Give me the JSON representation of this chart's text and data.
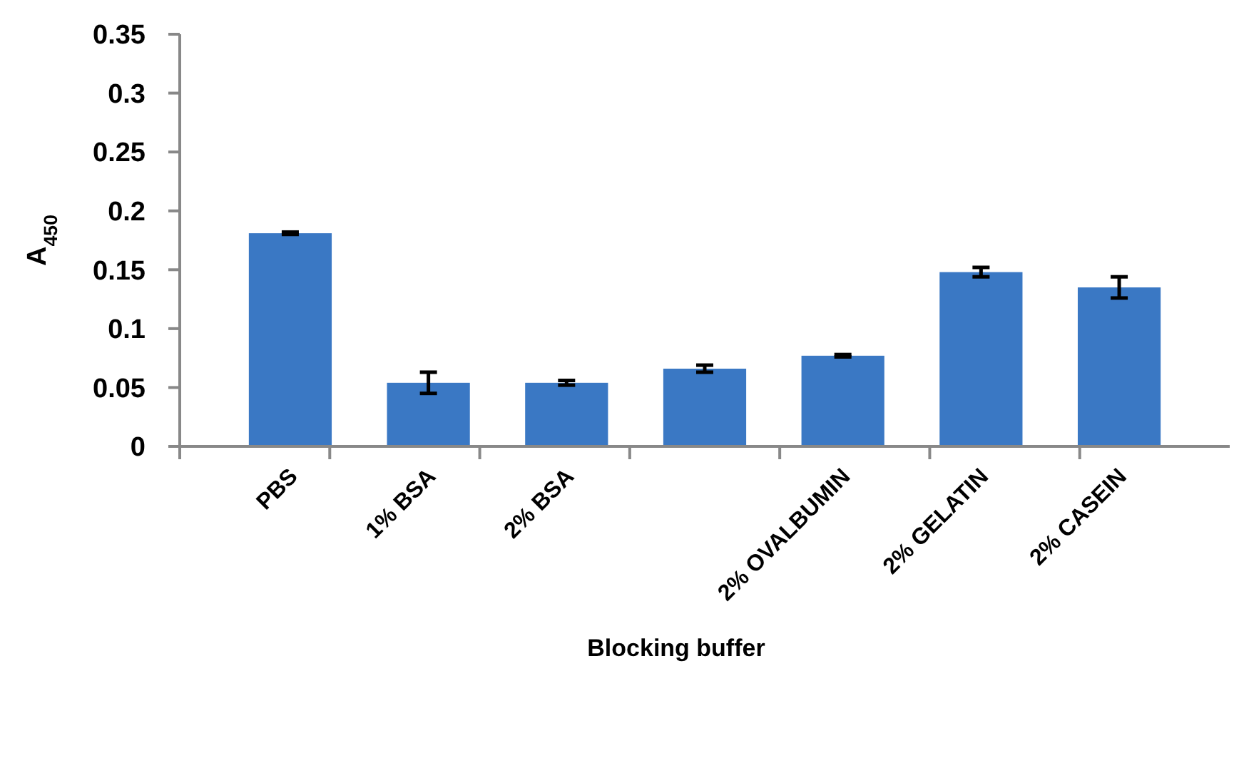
{
  "chart_data": {
    "type": "bar",
    "xlabel": "Blocking buffer",
    "ylabel": "A$_{450}$",
    "categories": [
      "PBS",
      "1% BSA",
      "2% BSA",
      null,
      "2% OVALBUMIN",
      "2% GELATIN",
      "2% CASEIN"
    ],
    "values": [
      0.181,
      0.054,
      0.054,
      0.066,
      0.077,
      0.148,
      0.135
    ],
    "errors": [
      0.001,
      0.009,
      0.002,
      0.003,
      0.001,
      0.004,
      0.009
    ],
    "color": "#3a78c4",
    "ylim": [
      0,
      0.35
    ],
    "yticks": [
      0,
      0.05,
      0.1,
      0.15,
      0.2,
      0.25,
      0.3,
      0.35
    ],
    "grid": false
  }
}
